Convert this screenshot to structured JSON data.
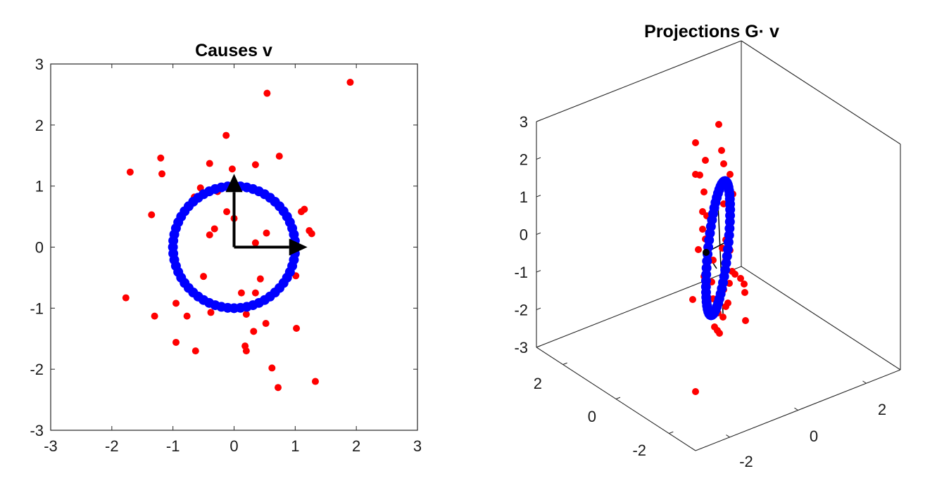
{
  "chart_data": [
    {
      "type": "scatter",
      "title": "Causes v",
      "xlabel": "",
      "ylabel": "",
      "xlim": [
        -3,
        3
      ],
      "ylim": [
        -3,
        3
      ],
      "xticks": [
        "-3",
        "-2",
        "-1",
        "0",
        "1",
        "2",
        "3"
      ],
      "yticks": [
        "3",
        "2",
        "1",
        "0",
        "-1",
        "-2",
        "-3"
      ],
      "grid": false,
      "colors": {
        "red_points": "#ff0000",
        "blue_circle": "#0000ff",
        "arrows": "#000000"
      },
      "series": [
        {
          "color": "red",
          "points": [
            [
              1.9,
              2.7
            ],
            [
              0.54,
              2.52
            ],
            [
              -0.13,
              1.83
            ],
            [
              0.74,
              1.49
            ],
            [
              -1.2,
              1.46
            ],
            [
              -0.4,
              1.37
            ],
            [
              0.35,
              1.35
            ],
            [
              -0.03,
              1.28
            ],
            [
              -1.7,
              1.23
            ],
            [
              -1.18,
              1.2
            ],
            [
              -0.55,
              0.97
            ],
            [
              -0.27,
              0.91
            ],
            [
              -0.65,
              0.82
            ],
            [
              1.15,
              0.62
            ],
            [
              1.1,
              0.58
            ],
            [
              -0.12,
              0.58
            ],
            [
              0.0,
              0.47
            ],
            [
              -1.35,
              0.53
            ],
            [
              -0.32,
              0.3
            ],
            [
              -0.4,
              0.2
            ],
            [
              0.53,
              0.23
            ],
            [
              1.23,
              0.27
            ],
            [
              1.27,
              0.22
            ],
            [
              0.35,
              0.07
            ],
            [
              -0.5,
              -0.48
            ],
            [
              1.01,
              -0.47
            ],
            [
              0.43,
              -0.52
            ],
            [
              0.12,
              -0.75
            ],
            [
              0.35,
              -0.75
            ],
            [
              -0.95,
              -0.92
            ],
            [
              -1.77,
              -0.83
            ],
            [
              -0.38,
              -1.07
            ],
            [
              -0.77,
              -1.13
            ],
            [
              -1.3,
              -1.13
            ],
            [
              0.2,
              -1.1
            ],
            [
              0.52,
              -1.25
            ],
            [
              1.02,
              -1.33
            ],
            [
              0.32,
              -1.38
            ],
            [
              -0.95,
              -1.56
            ],
            [
              0.18,
              -1.62
            ],
            [
              -0.63,
              -1.7
            ],
            [
              0.62,
              -1.98
            ],
            [
              1.33,
              -2.2
            ],
            [
              0.72,
              -2.3
            ],
            [
              0.2,
              -1.7
            ]
          ]
        },
        {
          "color": "blue",
          "shape": "unit circle",
          "n_points": 60,
          "center": [
            0,
            0
          ],
          "radius": 1
        }
      ],
      "arrows": [
        {
          "from": [
            0,
            0
          ],
          "to": [
            1.2,
            0
          ]
        },
        {
          "from": [
            0,
            0
          ],
          "to": [
            0,
            1.2
          ]
        }
      ]
    },
    {
      "type": "scatter3d",
      "title": "Projections G· v",
      "zticks": [
        "3",
        "2",
        "1",
        "0",
        "-1",
        "-2",
        "-3"
      ],
      "xticks": [
        "2",
        "0",
        "-2"
      ],
      "yticks": [
        "2",
        "0",
        "-2"
      ],
      "zlim": [
        -3,
        3
      ],
      "colors": {
        "red_points": "#ff0000",
        "blue_ellipse": "#0000ff",
        "lines": "#000000"
      },
      "red_point_count": 46,
      "blue_point_count": 60
    }
  ]
}
